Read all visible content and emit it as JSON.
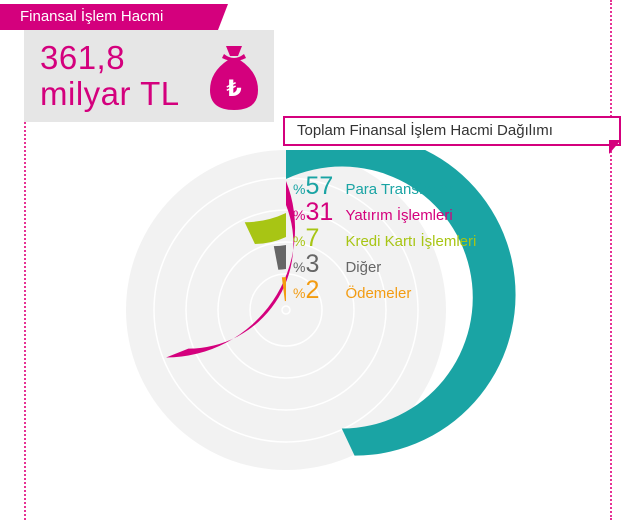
{
  "header": {
    "title": "Finansal İşlem Hacmi",
    "total_line1": "361,8",
    "total_line2": "milyar TL",
    "currency_symbol": "₺"
  },
  "chart_data": {
    "type": "radial-bar",
    "title": "Toplam Finansal İşlem Hacmi Dağılımı",
    "percent_prefix": "%",
    "categories": [
      "Para Transferleri",
      "Yatırım İşlemleri",
      "Kredi Kartı İşlemleri",
      "Diğer",
      "Ödemeler"
    ],
    "values": [
      57,
      31,
      7,
      3,
      2
    ],
    "colors": [
      "#1aa4a4",
      "#d4007d",
      "#a8c514",
      "#666666",
      "#f39c12"
    ],
    "track_color": "#f2f2f2"
  }
}
